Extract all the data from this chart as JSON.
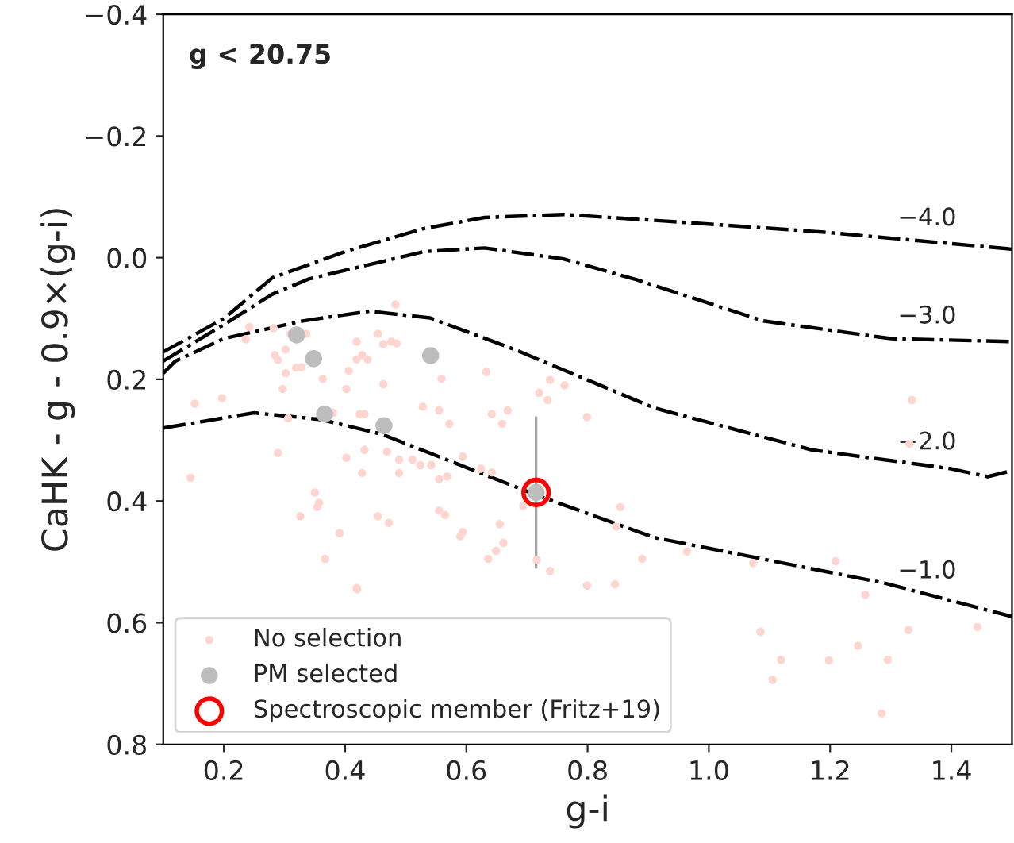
{
  "chart_data": {
    "type": "scatter",
    "xlabel": "g-i",
    "ylabel": "CaHK - g - 0.9×(g-i)",
    "annotations": [
      "g < 20.75"
    ],
    "xlim": [
      0.1,
      1.5
    ],
    "xticks": [
      0.2,
      0.4,
      0.6,
      0.8,
      {
        "value": 1.0,
        "label": "1.0"
      },
      1.2,
      1.4
    ],
    "ylim": [
      0.8,
      -0.4
    ],
    "yticks": [
      {
        "value": -0.4,
        "label": "−0.4"
      },
      {
        "value": -0.2,
        "label": "−0.2"
      },
      {
        "value": 0.0,
        "label": "0.0"
      },
      {
        "value": 0.2,
        "label": "0.2"
      },
      {
        "value": 0.4,
        "label": "0.4"
      },
      {
        "value": 0.6,
        "label": "0.6"
      },
      {
        "value": 0.8,
        "label": "0.8"
      }
    ],
    "grid": false,
    "legend": "bottom left",
    "series": [
      {
        "type": "line",
        "name": "−4.0",
        "color": "#000000",
        "line_style": "dashdot",
        "marker": "none",
        "x": [
          0.1,
          0.2,
          0.28,
          0.4,
          0.53,
          0.63,
          0.76,
          0.93,
          1.19,
          1.5
        ],
        "values": [
          0.155,
          0.1,
          0.033,
          -0.01,
          -0.048,
          -0.066,
          -0.071,
          -0.06,
          -0.042,
          -0.014
        ]
      },
      {
        "type": "line",
        "name": "−3.0",
        "color": "#000000",
        "line_style": "dashdot",
        "marker": "none",
        "x": [
          0.1,
          0.2,
          0.28,
          0.34,
          0.53,
          0.63,
          0.76,
          0.88,
          1.09,
          1.3,
          1.5
        ],
        "values": [
          0.17,
          0.11,
          0.06,
          0.035,
          -0.01,
          -0.016,
          0.002,
          0.036,
          0.104,
          0.133,
          0.138
        ]
      },
      {
        "type": "line",
        "name": "−2.0",
        "color": "#000000",
        "line_style": "dashdot",
        "marker": "none",
        "x": [
          0.1,
          0.12,
          0.2,
          0.33,
          0.44,
          0.54,
          0.68,
          0.91,
          1.17,
          1.4,
          1.46,
          1.5
        ],
        "values": [
          0.19,
          0.17,
          0.133,
          0.104,
          0.088,
          0.099,
          0.151,
          0.247,
          0.316,
          0.347,
          0.36,
          0.35
        ]
      },
      {
        "type": "line",
        "name": "−1.0",
        "color": "#000000",
        "line_style": "dashdot",
        "marker": "none",
        "x": [
          0.1,
          0.25,
          0.36,
          0.46,
          0.715,
          0.91,
          1.29,
          1.5
        ],
        "values": [
          0.28,
          0.255,
          0.266,
          0.29,
          0.39,
          0.46,
          0.535,
          0.59
        ]
      },
      {
        "name": "No selection",
        "color": "#ffd5d0",
        "marker": "circle",
        "x": [
          0.483,
          0.242,
          0.282,
          0.236,
          0.31,
          0.336,
          0.284,
          0.302,
          0.289,
          0.319,
          0.328,
          0.419,
          0.454,
          0.463,
          0.476,
          0.485,
          0.428,
          0.419,
          0.437,
          0.406,
          0.363,
          0.302,
          0.297,
          0.402,
          0.463,
          0.559,
          0.633,
          0.152,
          0.197,
          0.306,
          0.38,
          0.424,
          0.432,
          0.528,
          0.555,
          0.572,
          0.642,
          0.668,
          0.659,
          0.72,
          0.738,
          0.734,
          0.762,
          0.289,
          0.402,
          0.428,
          0.432,
          0.469,
          0.489,
          0.489,
          0.511,
          0.524,
          0.542,
          0.555,
          0.568,
          0.594,
          0.624,
          0.642,
          0.145,
          0.35,
          0.357,
          0.354,
          0.326,
          0.454,
          0.472,
          0.555,
          0.565,
          0.594,
          0.59,
          0.655,
          0.661,
          0.649,
          0.636,
          0.694,
          0.716,
          0.738,
          0.391,
          0.367,
          0.419,
          0.799,
          0.854,
          0.847,
          0.89,
          0.964,
          1.073,
          1.209,
          1.335,
          1.331,
          0.42,
          0.799,
          0.845,
          1.258,
          1.329,
          1.443,
          1.085,
          1.119,
          1.246,
          1.198,
          1.295,
          1.105,
          1.285
        ],
        "values": [
          0.077,
          0.114,
          0.116,
          0.134,
          0.125,
          0.125,
          0.16,
          0.151,
          0.168,
          0.181,
          0.18,
          0.138,
          0.125,
          0.142,
          0.138,
          0.141,
          0.16,
          0.167,
          0.167,
          0.186,
          0.199,
          0.19,
          0.216,
          0.216,
          0.208,
          0.199,
          0.188,
          0.24,
          0.231,
          0.264,
          0.255,
          0.257,
          0.257,
          0.245,
          0.251,
          0.273,
          0.257,
          0.251,
          0.273,
          0.222,
          0.201,
          0.234,
          0.21,
          0.321,
          0.329,
          0.354,
          0.316,
          0.319,
          0.332,
          0.354,
          0.332,
          0.341,
          0.341,
          0.364,
          0.36,
          0.327,
          0.347,
          0.353,
          0.362,
          0.386,
          0.403,
          0.41,
          0.425,
          0.425,
          0.436,
          0.416,
          0.423,
          0.451,
          0.458,
          0.438,
          0.469,
          0.482,
          0.495,
          0.408,
          0.497,
          0.515,
          0.453,
          0.495,
          0.543,
          0.262,
          0.41,
          0.442,
          0.495,
          0.483,
          0.502,
          0.499,
          0.234,
          0.306,
          0.545,
          0.539,
          0.537,
          0.554,
          0.612,
          0.607,
          0.615,
          0.661,
          0.638,
          0.662,
          0.661,
          0.694,
          0.749
        ]
      },
      {
        "name": "PM selected",
        "color": "#bdbdbd",
        "marker": "circle",
        "x": [
          0.32,
          0.348,
          0.541,
          0.366,
          0.464,
          0.715
        ],
        "values": [
          0.127,
          0.166,
          0.161,
          0.257,
          0.276,
          0.386
        ]
      },
      {
        "name": "Spectroscopic member (Fritz+19)",
        "color": "#ff0000",
        "marker": "circle",
        "x": [
          0.715
        ],
        "values": [
          0.386
        ],
        "errors": [
          0.125
        ]
      }
    ]
  }
}
